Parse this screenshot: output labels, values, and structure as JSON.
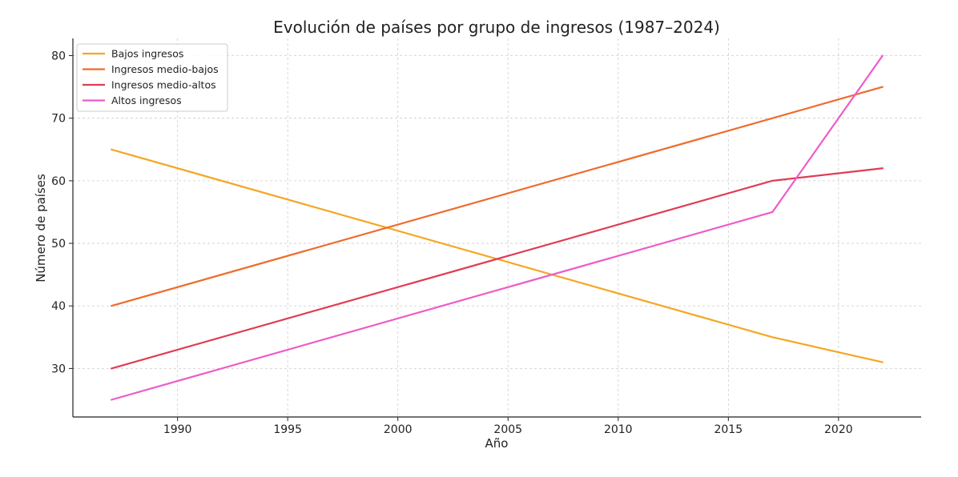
{
  "chart_data": {
    "type": "line",
    "title": "Evolución de países por grupo de ingresos (1987–2024)",
    "xlabel": "Año",
    "ylabel": "Número de países",
    "xlim": [
      1985.25,
      2023.75
    ],
    "ylim": [
      22.25,
      82.75
    ],
    "xticks": [
      1990,
      1995,
      2000,
      2005,
      2010,
      2015,
      2020
    ],
    "yticks": [
      30,
      40,
      50,
      60,
      70,
      80
    ],
    "grid": true,
    "legend_position": "top-left",
    "x": [
      1987,
      2017,
      2022
    ],
    "series": [
      {
        "name": "Bajos ingresos",
        "color": "#f5a623",
        "values": [
          65,
          35,
          31
        ]
      },
      {
        "name": "Ingresos medio-bajos",
        "color": "#ee6c2d",
        "values": [
          40,
          70,
          75
        ]
      },
      {
        "name": "Ingresos medio-altos",
        "color": "#e03c55",
        "values": [
          30,
          60,
          62
        ]
      },
      {
        "name": "Altos ingresos",
        "color": "#ee5bc8",
        "values": [
          25,
          55,
          80
        ]
      }
    ]
  }
}
